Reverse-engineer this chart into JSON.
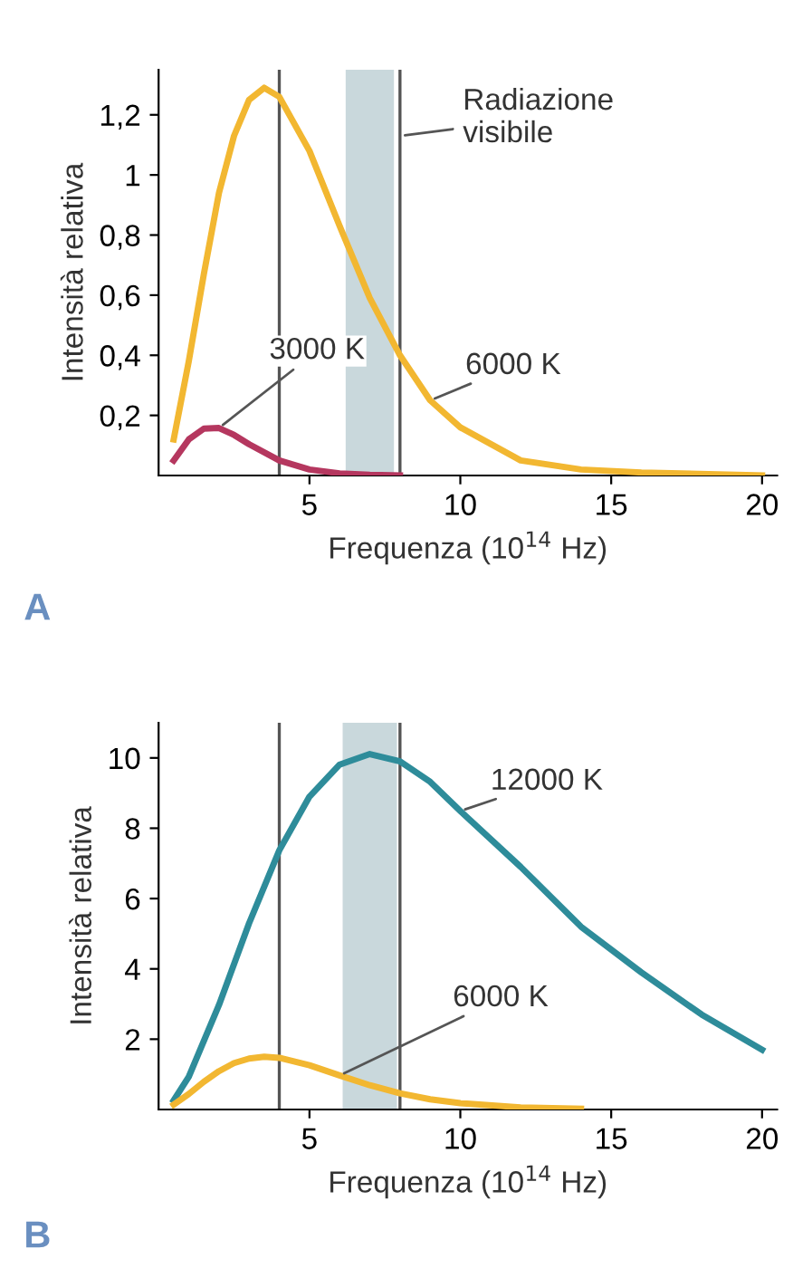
{
  "chart_data": [
    {
      "type": "line",
      "xlabel": "Frequenza (10$^{14}$ Hz)",
      "ylabel": "Intensità relativa",
      "xlim": [
        0,
        20.5
      ],
      "ylim": [
        0,
        1.35
      ],
      "xticks": [
        5,
        10,
        15,
        20
      ],
      "yticks": [
        {
          "value": 0.2,
          "label": "0,2"
        },
        {
          "value": 0.4,
          "label": "0,4"
        },
        {
          "value": 0.6,
          "label": "0,6"
        },
        {
          "value": 0.8,
          "label": "0,8"
        },
        1,
        {
          "value": 1.2,
          "label": "1,2"
        }
      ],
      "grid": false,
      "legend": false,
      "marker": "none",
      "line_style": "solid",
      "series": [
        {
          "name": "6000 K",
          "color": "#f2b731",
          "x": [
            0.5,
            1,
            1.5,
            2,
            2.5,
            3,
            3.5,
            4,
            5,
            6,
            7,
            8,
            9,
            10,
            12,
            14,
            16,
            20
          ],
          "values": [
            0.12,
            0.38,
            0.67,
            0.94,
            1.13,
            1.25,
            1.29,
            1.26,
            1.08,
            0.83,
            0.59,
            0.4,
            0.25,
            0.16,
            0.05,
            0.02,
            0.01,
            0
          ]
        },
        {
          "name": "3000 K",
          "color": "#b5375f",
          "x": [
            0.5,
            1,
            1.5,
            2,
            2.5,
            3,
            4,
            5,
            6,
            7,
            8
          ],
          "values": [
            0.05,
            0.12,
            0.156,
            0.158,
            0.135,
            0.104,
            0.05,
            0.02,
            0.007,
            0.002,
            0
          ]
        }
      ],
      "ref_lines": [
        {
          "axis": "x",
          "value": 4,
          "color": "#555555"
        },
        {
          "axis": "x",
          "value": 8,
          "color": "#555555"
        }
      ],
      "bands": [
        {
          "axis": "x",
          "from": 6.2,
          "to": 7.8,
          "color": "#c9d8dc"
        }
      ],
      "annotations": [
        {
          "text": "Radiazione\nvisibile",
          "x": 8,
          "y": 1.13
        },
        "A"
      ]
    },
    {
      "type": "line",
      "xlabel": "Frequenza (10$^{14}$ Hz)",
      "ylabel": "Intensità relativa",
      "xlim": [
        0,
        20.5
      ],
      "ylim": [
        0,
        11
      ],
      "xticks": [
        5,
        10,
        15,
        20
      ],
      "yticks": [
        2,
        4,
        6,
        8,
        10
      ],
      "grid": false,
      "legend": false,
      "marker": "none",
      "line_style": "solid",
      "series": [
        {
          "name": "12000 K",
          "color": "#2e8c9a",
          "x": [
            0.5,
            1,
            2,
            3,
            4,
            5,
            6,
            7,
            8,
            9,
            10,
            12,
            14,
            16,
            18,
            20
          ],
          "values": [
            0.26,
            0.93,
            2.97,
            5.3,
            7.37,
            8.9,
            9.81,
            10.11,
            9.9,
            9.32,
            8.49,
            6.9,
            5.2,
            3.9,
            2.7,
            1.7
          ]
        },
        {
          "name": "6000 K",
          "color": "#f2b731",
          "x": [
            0.5,
            1,
            1.5,
            2,
            2.5,
            3,
            3.5,
            4,
            5,
            6,
            7,
            8,
            9,
            10,
            12,
            14
          ],
          "values": [
            0.14,
            0.44,
            0.79,
            1.09,
            1.32,
            1.45,
            1.5,
            1.47,
            1.26,
            0.97,
            0.69,
            0.46,
            0.29,
            0.18,
            0.06,
            0.02
          ]
        }
      ],
      "ref_lines": [
        {
          "axis": "x",
          "value": 4,
          "color": "#555555"
        },
        {
          "axis": "x",
          "value": 8,
          "color": "#555555"
        }
      ],
      "bands": [
        {
          "axis": "x",
          "from": 6.1,
          "to": 7.9,
          "color": "#c9d8dc"
        }
      ],
      "annotations": [
        "B"
      ]
    }
  ]
}
